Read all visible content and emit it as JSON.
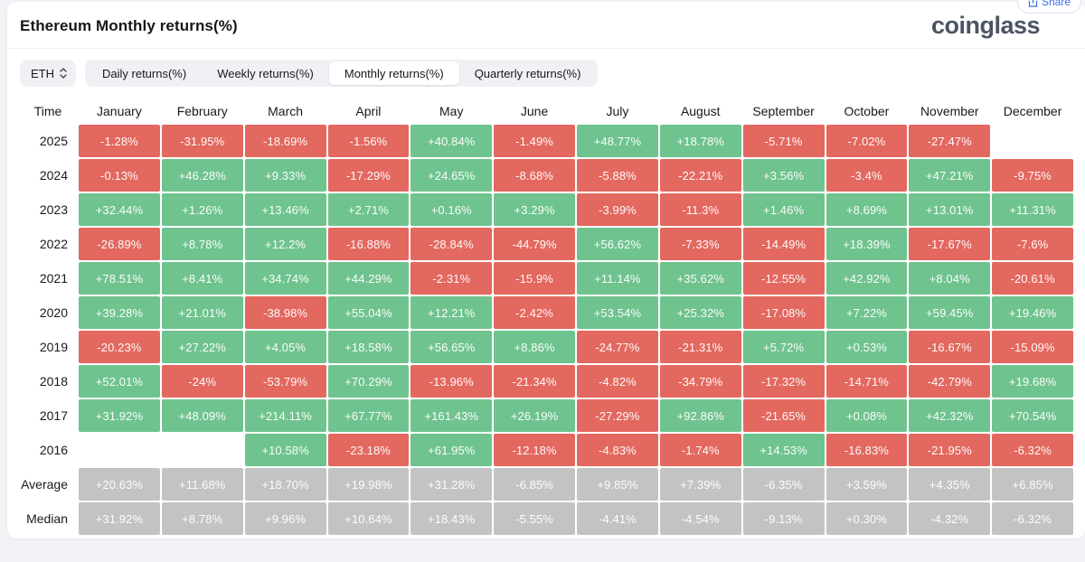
{
  "header": {
    "title": "Ethereum Monthly returns(%)",
    "logo": "coinglass",
    "share_label": "Share"
  },
  "controls": {
    "symbol": "ETH",
    "tabs": [
      {
        "label": "Daily returns(%)",
        "selected": false
      },
      {
        "label": "Weekly returns(%)",
        "selected": false
      },
      {
        "label": "Monthly returns(%)",
        "selected": true
      },
      {
        "label": "Quarterly returns(%)",
        "selected": false
      }
    ]
  },
  "colors": {
    "positive_cell": "#6fc38e",
    "negative_cell": "#e3685f",
    "neutral_cell": "#c3c3c3",
    "accent_blue": "#3f6ef0",
    "logo_color": "#4b5463"
  },
  "table": {
    "time_header": "Time",
    "months": [
      "January",
      "February",
      "March",
      "April",
      "May",
      "June",
      "July",
      "August",
      "September",
      "October",
      "November",
      "December"
    ],
    "rows": [
      {
        "time": "2025",
        "kind": "year",
        "cells": [
          "-1.28%",
          "-31.95%",
          "-18.69%",
          "-1.56%",
          "+40.84%",
          "-1.49%",
          "+48.77%",
          "+18.78%",
          "-5.71%",
          "-7.02%",
          "-27.47%",
          ""
        ]
      },
      {
        "time": "2024",
        "kind": "year",
        "cells": [
          "-0.13%",
          "+46.28%",
          "+9.33%",
          "-17.29%",
          "+24.65%",
          "-8.68%",
          "-5.88%",
          "-22.21%",
          "+3.56%",
          "-3.4%",
          "+47.21%",
          "-9.75%"
        ]
      },
      {
        "time": "2023",
        "kind": "year",
        "cells": [
          "+32.44%",
          "+1.26%",
          "+13.46%",
          "+2.71%",
          "+0.16%",
          "+3.29%",
          "-3.99%",
          "-11.3%",
          "+1.46%",
          "+8.69%",
          "+13.01%",
          "+11.31%"
        ]
      },
      {
        "time": "2022",
        "kind": "year",
        "cells": [
          "-26.89%",
          "+8.78%",
          "+12.2%",
          "-16.88%",
          "-28.84%",
          "-44.79%",
          "+56.62%",
          "-7.33%",
          "-14.49%",
          "+18.39%",
          "-17.67%",
          "-7.6%"
        ]
      },
      {
        "time": "2021",
        "kind": "year",
        "cells": [
          "+78.51%",
          "+8.41%",
          "+34.74%",
          "+44.29%",
          "-2.31%",
          "-15.9%",
          "+11.14%",
          "+35.62%",
          "-12.55%",
          "+42.92%",
          "+8.04%",
          "-20.61%"
        ]
      },
      {
        "time": "2020",
        "kind": "year",
        "cells": [
          "+39.28%",
          "+21.01%",
          "-38.98%",
          "+55.04%",
          "+12.21%",
          "-2.42%",
          "+53.54%",
          "+25.32%",
          "-17.08%",
          "+7.22%",
          "+59.45%",
          "+19.46%"
        ]
      },
      {
        "time": "2019",
        "kind": "year",
        "cells": [
          "-20.23%",
          "+27.22%",
          "+4.05%",
          "+18.58%",
          "+56.65%",
          "+8.86%",
          "-24.77%",
          "-21.31%",
          "+5.72%",
          "+0.53%",
          "-16.67%",
          "-15.09%"
        ]
      },
      {
        "time": "2018",
        "kind": "year",
        "cells": [
          "+52.01%",
          "-24%",
          "-53.79%",
          "+70.29%",
          "-13.96%",
          "-21.34%",
          "-4.82%",
          "-34.79%",
          "-17.32%",
          "-14.71%",
          "-42.79%",
          "+19.68%"
        ]
      },
      {
        "time": "2017",
        "kind": "year",
        "cells": [
          "+31.92%",
          "+48.09%",
          "+214.11%",
          "+67.77%",
          "+161.43%",
          "+26.19%",
          "-27.29%",
          "+92.86%",
          "-21.65%",
          "+0.08%",
          "+42.32%",
          "+70.54%"
        ]
      },
      {
        "time": "2016",
        "kind": "year",
        "cells": [
          "",
          "",
          "+10.58%",
          "-23.18%",
          "+61.95%",
          "-12.18%",
          "-4.83%",
          "-1.74%",
          "+14.53%",
          "-16.83%",
          "-21.95%",
          "-6.32%"
        ]
      },
      {
        "time": "Average",
        "kind": "summary",
        "cells": [
          "+20.63%",
          "+11.68%",
          "+18.70%",
          "+19.98%",
          "+31.28%",
          "-6.85%",
          "+9.85%",
          "+7.39%",
          "-6.35%",
          "+3.59%",
          "+4.35%",
          "+6.85%"
        ]
      },
      {
        "time": "Median",
        "kind": "summary",
        "cells": [
          "+31.92%",
          "+8.78%",
          "+9.96%",
          "+10.64%",
          "+18.43%",
          "-5.55%",
          "-4.41%",
          "-4.54%",
          "-9.13%",
          "+0.30%",
          "-4.32%",
          "-6.32%"
        ]
      }
    ]
  }
}
